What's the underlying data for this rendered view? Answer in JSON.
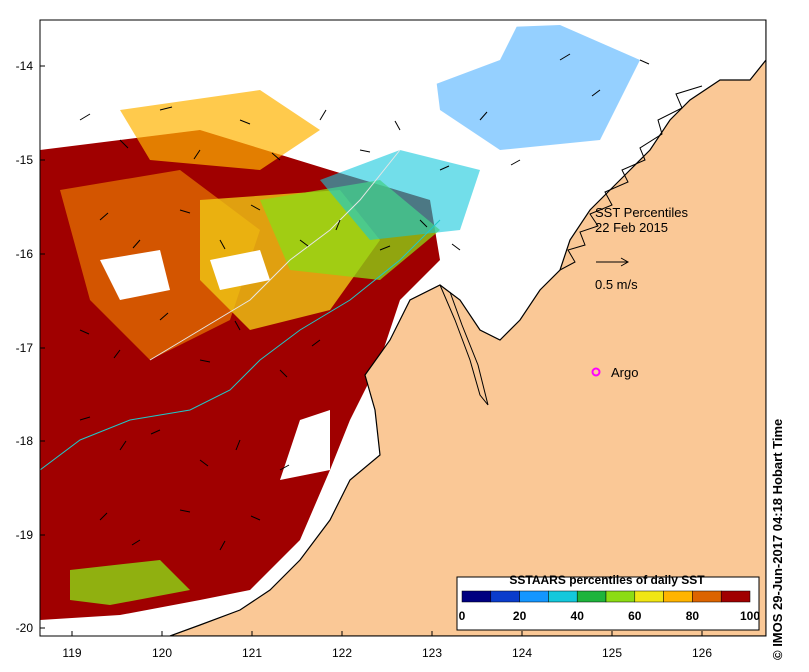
{
  "map": {
    "title": "SST Percentiles",
    "date": "22 Feb 2015",
    "scale_label": "0.5 m/s",
    "marker_label": "Argo",
    "credit": "© IMOS 29-Jun-2017 04:18 Hobart Time",
    "lon_ticks": [
      "119",
      "120",
      "121",
      "122",
      "123",
      "124",
      "125",
      "126"
    ],
    "lat_ticks": [
      "-14",
      "-15",
      "-16",
      "-17",
      "-18",
      "-19",
      "-20"
    ],
    "colorbar": {
      "title": "SSTAARS percentiles of daily SST",
      "labels": [
        "0",
        "20",
        "40",
        "60",
        "80",
        "100"
      ],
      "colors": [
        "#000080",
        "#0a3ccc",
        "#1496ff",
        "#14c8dc",
        "#1eb43c",
        "#8cdc14",
        "#f0e614",
        "#ffb400",
        "#dc6400",
        "#a00000"
      ]
    }
  },
  "colors": {
    "land": "#fac896",
    "marker": "#ff00ff",
    "coast": "#000000"
  }
}
